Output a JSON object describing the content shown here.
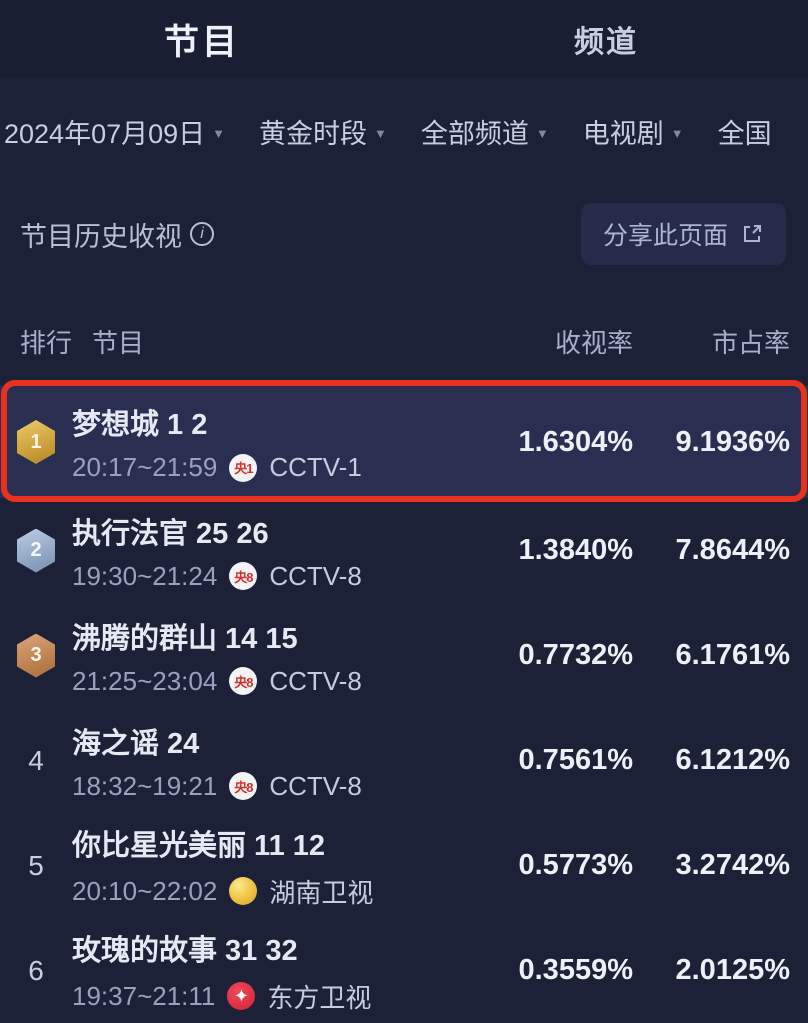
{
  "tabs": [
    {
      "label": "节目",
      "active": true
    },
    {
      "label": "频道",
      "active": false
    }
  ],
  "filters": [
    {
      "label": "2024年07月09日",
      "arrow": true
    },
    {
      "label": "黄金时段",
      "arrow": true
    },
    {
      "label": "全部频道",
      "arrow": true
    },
    {
      "label": "电视剧",
      "arrow": true
    },
    {
      "label": "全国",
      "arrow": false
    }
  ],
  "section": {
    "title": "节目历史收视",
    "info_icon": "i",
    "share_label": "分享此页面"
  },
  "table_header": {
    "rank": "排行",
    "program": "节目",
    "rating": "收视率",
    "market_share": "市占率"
  },
  "rows": [
    {
      "rank": "1",
      "badge": "gold",
      "title": "梦想城 1 2",
      "time": "20:17~21:59",
      "logo_type": "cctv",
      "logo_text": "央1",
      "channel": "CCTV-1",
      "rating": "1.6304%",
      "market_share": "9.1936%",
      "highlighted": true
    },
    {
      "rank": "2",
      "badge": "silver",
      "title": "执行法官 25 26",
      "time": "19:30~21:24",
      "logo_type": "cctv",
      "logo_text": "央8",
      "channel": "CCTV-8",
      "rating": "1.3840%",
      "market_share": "7.8644%",
      "highlighted": false
    },
    {
      "rank": "3",
      "badge": "bronze",
      "title": "沸腾的群山 14 15",
      "time": "21:25~23:04",
      "logo_type": "cctv",
      "logo_text": "央8",
      "channel": "CCTV-8",
      "rating": "0.7732%",
      "market_share": "6.1761%",
      "highlighted": false
    },
    {
      "rank": "4",
      "badge": "none",
      "title": "海之谣 24",
      "time": "18:32~19:21",
      "logo_type": "cctv",
      "logo_text": "央8",
      "channel": "CCTV-8",
      "rating": "0.7561%",
      "market_share": "6.1212%",
      "highlighted": false
    },
    {
      "rank": "5",
      "badge": "none",
      "title": "你比星光美丽 11 12",
      "time": "20:10~22:02",
      "logo_type": "hunan",
      "logo_text": "",
      "channel": "湖南卫视",
      "rating": "0.5773%",
      "market_share": "3.2742%",
      "highlighted": false
    },
    {
      "rank": "6",
      "badge": "none",
      "title": "玫瑰的故事 31 32",
      "time": "19:37~21:11",
      "logo_type": "dragon",
      "logo_text": "✦",
      "channel": "东方卫视",
      "rating": "0.3559%",
      "market_share": "2.0125%",
      "highlighted": false
    }
  ],
  "colors": {
    "background": "#1d2138",
    "highlight_row": "#2a2f52",
    "annotation_red": "#e8321f",
    "accent_gold": "#c79a35",
    "accent_silver": "#8ba0bf",
    "accent_bronze": "#b87c4b",
    "cctv_red": "#d6312b",
    "hunan_gold": "#f0c84a",
    "dragon_red": "#d31f36"
  }
}
